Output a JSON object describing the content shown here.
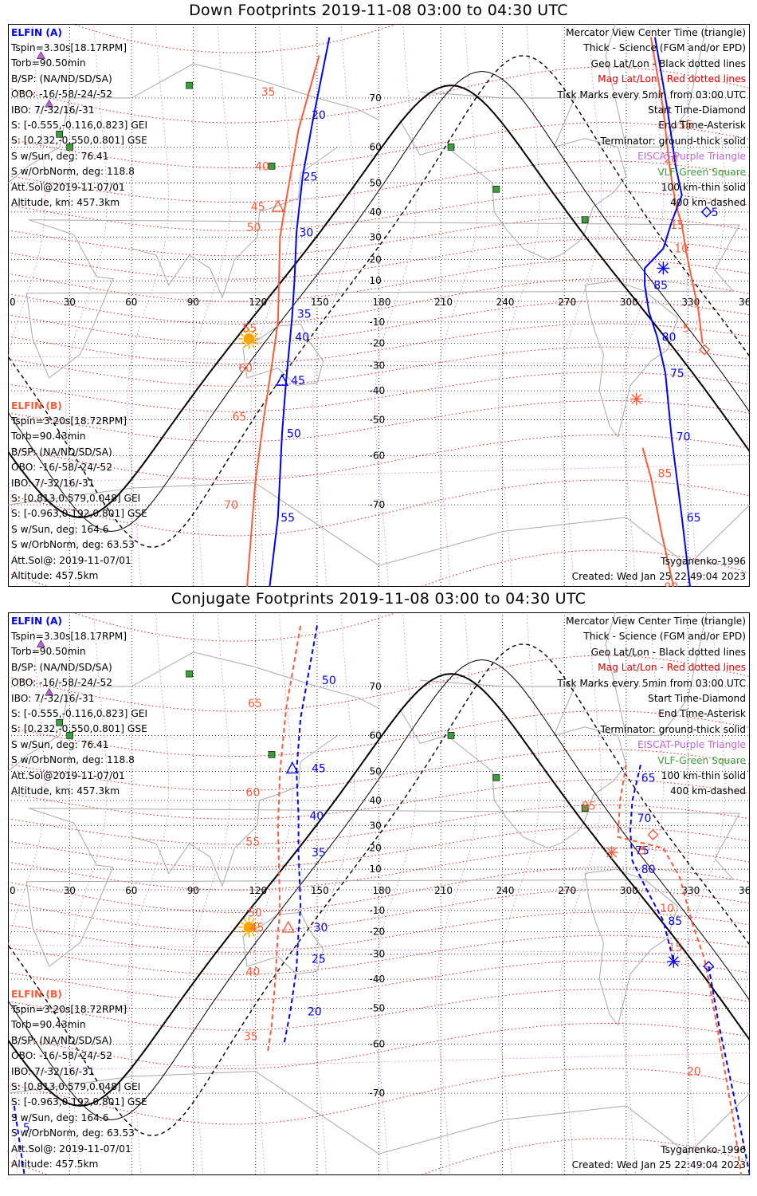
{
  "panels": [
    {
      "title": "Down Footprints 2019-11-08 03:00 to 04:30 UTC",
      "elfin_a": {
        "name": "ELFIN (A)",
        "lines": [
          "Tspin=3.30s[18.17RPM]",
          "Torb=90.50min",
          "B/SP: (NA/ND/SD/SA)",
          "OBO: -16/-58/-24/-52",
          "IBO: 7/-32/16/-31",
          "S: [-0.555,-0.116,0.823] GEI",
          "S: [0.232,-0.550,0.801] GSE",
          "S w/Sun, deg: 76.41",
          "S w/OrbNorm, deg: 118.8",
          "Att.Sol@2019-11-07/01",
          "Altitude, km: 457.3km"
        ]
      },
      "elfin_b": {
        "name": "ELFIN (B)",
        "lines": [
          "Tspin=3.20s[18.72RPM]",
          "Torb=90.43min",
          "B/SP: (NA/ND/SD/SA)",
          "OBO: -16/-58/-24/-52",
          "IBO: 7/-32/16/-31",
          "S: [0.813,0.579,0.048] GEI",
          "S: [-0.963,0.192,0.801] GSE",
          "S w/Sun, deg: 164.6",
          "S w/OrbNorm, deg: 63.53",
          "Att.Sol@: 2019-11-07/01",
          "Altitude: 457.5km"
        ]
      },
      "legend": [
        "Mercator View Center Time (triangle)",
        "Thick - Science (FGM and/or EPD)",
        "Geo Lat/Lon - Black dotted lines",
        "Mag Lat/Lon - Red dotted lines",
        "Tick Marks every 5min from 03:00 UTC",
        "Start Time-Diamond",
        "End Time-Asterisk",
        "Terminator: ground-thick solid",
        "EISCAT-Purple Triangle",
        "VLF-Green Square",
        "100 km-thin solid",
        "400 km-dashed"
      ],
      "model": "Tsyganenko-1996",
      "created": "Created: Wed Jan 25 22:49:04 2023",
      "track_a": {
        "lon": [
          339,
          338,
          337,
          335,
          333,
          331,
          330,
          329,
          327,
          325,
          324,
          323,
          322,
          321,
          320,
          319,
          318,
          317,
          316,
          315,
          314,
          313,
          312,
          311,
          310,
          309,
          308,
          307,
          306,
          305,
          304,
          303,
          302,
          301,
          300,
          299,
          298,
          297,
          296,
          295,
          294,
          293,
          292,
          291,
          290,
          289,
          288,
          287,
          286,
          285,
          284,
          283,
          282,
          281,
          280,
          279,
          278,
          277,
          276,
          275,
          274,
          273,
          272,
          271,
          270
        ],
        "times_a_down_blue": [
          {
            "lon": 150,
            "lat": 75,
            "label": ""
          },
          {
            "lon": 145,
            "lat": 67,
            "label": "20"
          },
          {
            "lon": 141,
            "lat": 52,
            "label": "25"
          },
          {
            "lon": 139,
            "lat": 32,
            "label": "30"
          },
          {
            "lon": 138,
            "lat": -6,
            "label": "35"
          },
          {
            "lon": 137,
            "lat": -17,
            "label": "40"
          },
          {
            "lon": 135,
            "lat": -36,
            "label": "45"
          },
          {
            "lon": 133,
            "lat": -54,
            "label": "50"
          },
          {
            "lon": 130,
            "lat": -72,
            "label": "55"
          },
          {
            "lon": 127,
            "lat": -80,
            "label": ""
          }
        ]
      }
    },
    {
      "title": "Conjugate Footprints 2019-11-08 03:00 to 04:30 UTC",
      "elfin_a": {
        "name": "ELFIN (A)",
        "lines": [
          "Tspin=3.30s[18.17RPM]",
          "Torb=90.50min",
          "B/SP: (NA/ND/SD/SA)",
          "OBO: -16/-58/-24/-52",
          "IBO: 7/-32/16/-31",
          "S: [-0.555,-0.116,0.823] GEI",
          "S: [0.232,-0.550,0.801] GSE",
          "S w/Sun, deg: 76.41",
          "S w/OrbNorm, deg: 118.8",
          "Att.Sol@2019-11-07/01",
          "Altitude, km: 457.3km"
        ]
      },
      "elfin_b": {
        "name": "ELFIN (B)",
        "lines": [
          "Tspin=3.20s[18.72RPM]",
          "Torb=90.43min",
          "B/SP: (NA/ND/SD/SA)",
          "OBO: -16/-58/-24/-52",
          "IBO: 7/-32/16/-31",
          "S: [0.813,0.579,0.048] GEI",
          "S: [-0.963,0.192,0.801] GSE",
          "S w/Sun, deg: 164.6",
          "S w/OrbNorm, deg: 63.53",
          "Att.Sol@: 2019-11-07/01",
          "Altitude: 457.5km"
        ]
      },
      "legend": [
        "Mercator View Center Time (triangle)",
        "Thick - Science (FGM and/or EPD)",
        "Geo Lat/Lon - Black dotted lines",
        "Mag Lat/Lon - Red dotted lines",
        "Tick Marks every 5min from 03:00 UTC",
        "Start Time-Diamond",
        "End Time-Asterisk",
        "Terminator: ground-thick solid",
        "EISCAT-Purple Triangle",
        "VLF-Green Square",
        "100 km-thin solid",
        "400 km-dashed"
      ],
      "model": "Tsyganenko-1996",
      "created": "Created: Wed Jan 25 22:49:04 2023"
    }
  ],
  "lon_ticks": [
    "0",
    "30",
    "60",
    "90",
    "120",
    "150",
    "180",
    "210",
    "240",
    "270",
    "300",
    "330",
    "360"
  ],
  "lat_ticks": [
    "70",
    "60",
    "50",
    "40",
    "30",
    "20",
    "10",
    "-10",
    "-20",
    "-30",
    "-40",
    "-50",
    "-60",
    "-70"
  ],
  "colors": {
    "elfin_a": "#0000ff",
    "elfin_b": "#ff5a36",
    "mag_grid": "#e00000",
    "geo_grid": "#000000",
    "vlf": "#3a9e3a",
    "eiscat": "#c060e0",
    "sun": "#ffa500"
  },
  "down_a": [
    {
      "lon": 339,
      "lat": 40,
      "label": "5",
      "mark": "diamond"
    },
    {
      "lon": 322,
      "lat": 25,
      "label": "",
      "mark": ""
    },
    {
      "lon": 318,
      "lat": 16,
      "label": "",
      "mark": "asterisk"
    },
    {
      "lon": 311,
      "lat": 8,
      "label": "85",
      "mark": ""
    },
    {
      "lon": 315,
      "lat": -17,
      "label": "80",
      "mark": ""
    },
    {
      "lon": 319,
      "lat": -33,
      "label": "75",
      "mark": ""
    },
    {
      "lon": 322,
      "lat": -55,
      "label": "70",
      "mark": ""
    },
    {
      "lon": 327,
      "lat": -72,
      "label": "65",
      "mark": ""
    },
    {
      "lon": 331,
      "lat": -80,
      "label": "",
      "mark": ""
    }
  ],
  "down_b_labels": [
    {
      "lon": 136,
      "lat": 71,
      "label": "35"
    },
    {
      "lon": 133,
      "lat": 55,
      "label": "40"
    },
    {
      "lon": 131,
      "lat": 42,
      "label": "45"
    },
    {
      "lon": 129,
      "lat": 34,
      "label": "50"
    },
    {
      "lon": 127,
      "lat": -13,
      "label": "55"
    },
    {
      "lon": 125,
      "lat": -31,
      "label": "60"
    },
    {
      "lon": 122,
      "lat": -49,
      "label": "65"
    },
    {
      "lon": 118,
      "lat": -70,
      "label": "70"
    }
  ],
  "down_b_right_labels": [
    {
      "lon": 330,
      "lat": 65,
      "label": "55"
    },
    {
      "lon": 323,
      "lat": 57,
      "label": "20"
    },
    {
      "lon": 326,
      "lat": 35,
      "label": "15"
    },
    {
      "lon": 328,
      "lat": 25,
      "label": "10"
    },
    {
      "lon": 332,
      "lat": -13,
      "label": "5"
    },
    {
      "lon": 320,
      "lat": -64,
      "label": "85"
    },
    {
      "lon": 323,
      "lat": -80,
      "label": "80"
    }
  ],
  "conj_a_labels": [
    {
      "lon": 150,
      "lat": 71,
      "label": "50"
    },
    {
      "lon": 145,
      "lat": 51,
      "label": "45"
    },
    {
      "lon": 144,
      "lat": 34,
      "label": "40"
    },
    {
      "lon": 145,
      "lat": 18,
      "label": "35"
    },
    {
      "lon": 146,
      "lat": -18,
      "label": "30"
    },
    {
      "lon": 145,
      "lat": -32,
      "label": "25"
    },
    {
      "lon": 143,
      "lat": -51,
      "label": "20"
    },
    {
      "lon": 305,
      "lat": 48,
      "label": "65"
    },
    {
      "lon": 303,
      "lat": 33,
      "label": "70"
    },
    {
      "lon": 302,
      "lat": 19,
      "label": "75"
    },
    {
      "lon": 305,
      "lat": 10,
      "label": "80"
    },
    {
      "lon": 318,
      "lat": -15,
      "label": "85"
    },
    {
      "lon": 5,
      "lat": -75,
      "label": "5"
    }
  ],
  "conj_b_labels": [
    {
      "lon": 128,
      "lat": 67,
      "label": "65"
    },
    {
      "lon": 127,
      "lat": 43,
      "label": "60"
    },
    {
      "lon": 127,
      "lat": 23,
      "label": "55"
    },
    {
      "lon": 128,
      "lat": -11,
      "label": "50"
    },
    {
      "lon": 129,
      "lat": -18,
      "label": "45"
    },
    {
      "lon": 127,
      "lat": -37,
      "label": "40"
    },
    {
      "lon": 126,
      "lat": -58,
      "label": "35"
    },
    {
      "lon": 290,
      "lat": 38,
      "label": "85"
    },
    {
      "lon": 318,
      "lat": 19,
      "label": "5"
    },
    {
      "lon": 328,
      "lat": -9,
      "label": "10"
    },
    {
      "lon": 332,
      "lat": -27,
      "label": "15"
    },
    {
      "lon": 341,
      "lat": -66,
      "label": "20"
    }
  ]
}
